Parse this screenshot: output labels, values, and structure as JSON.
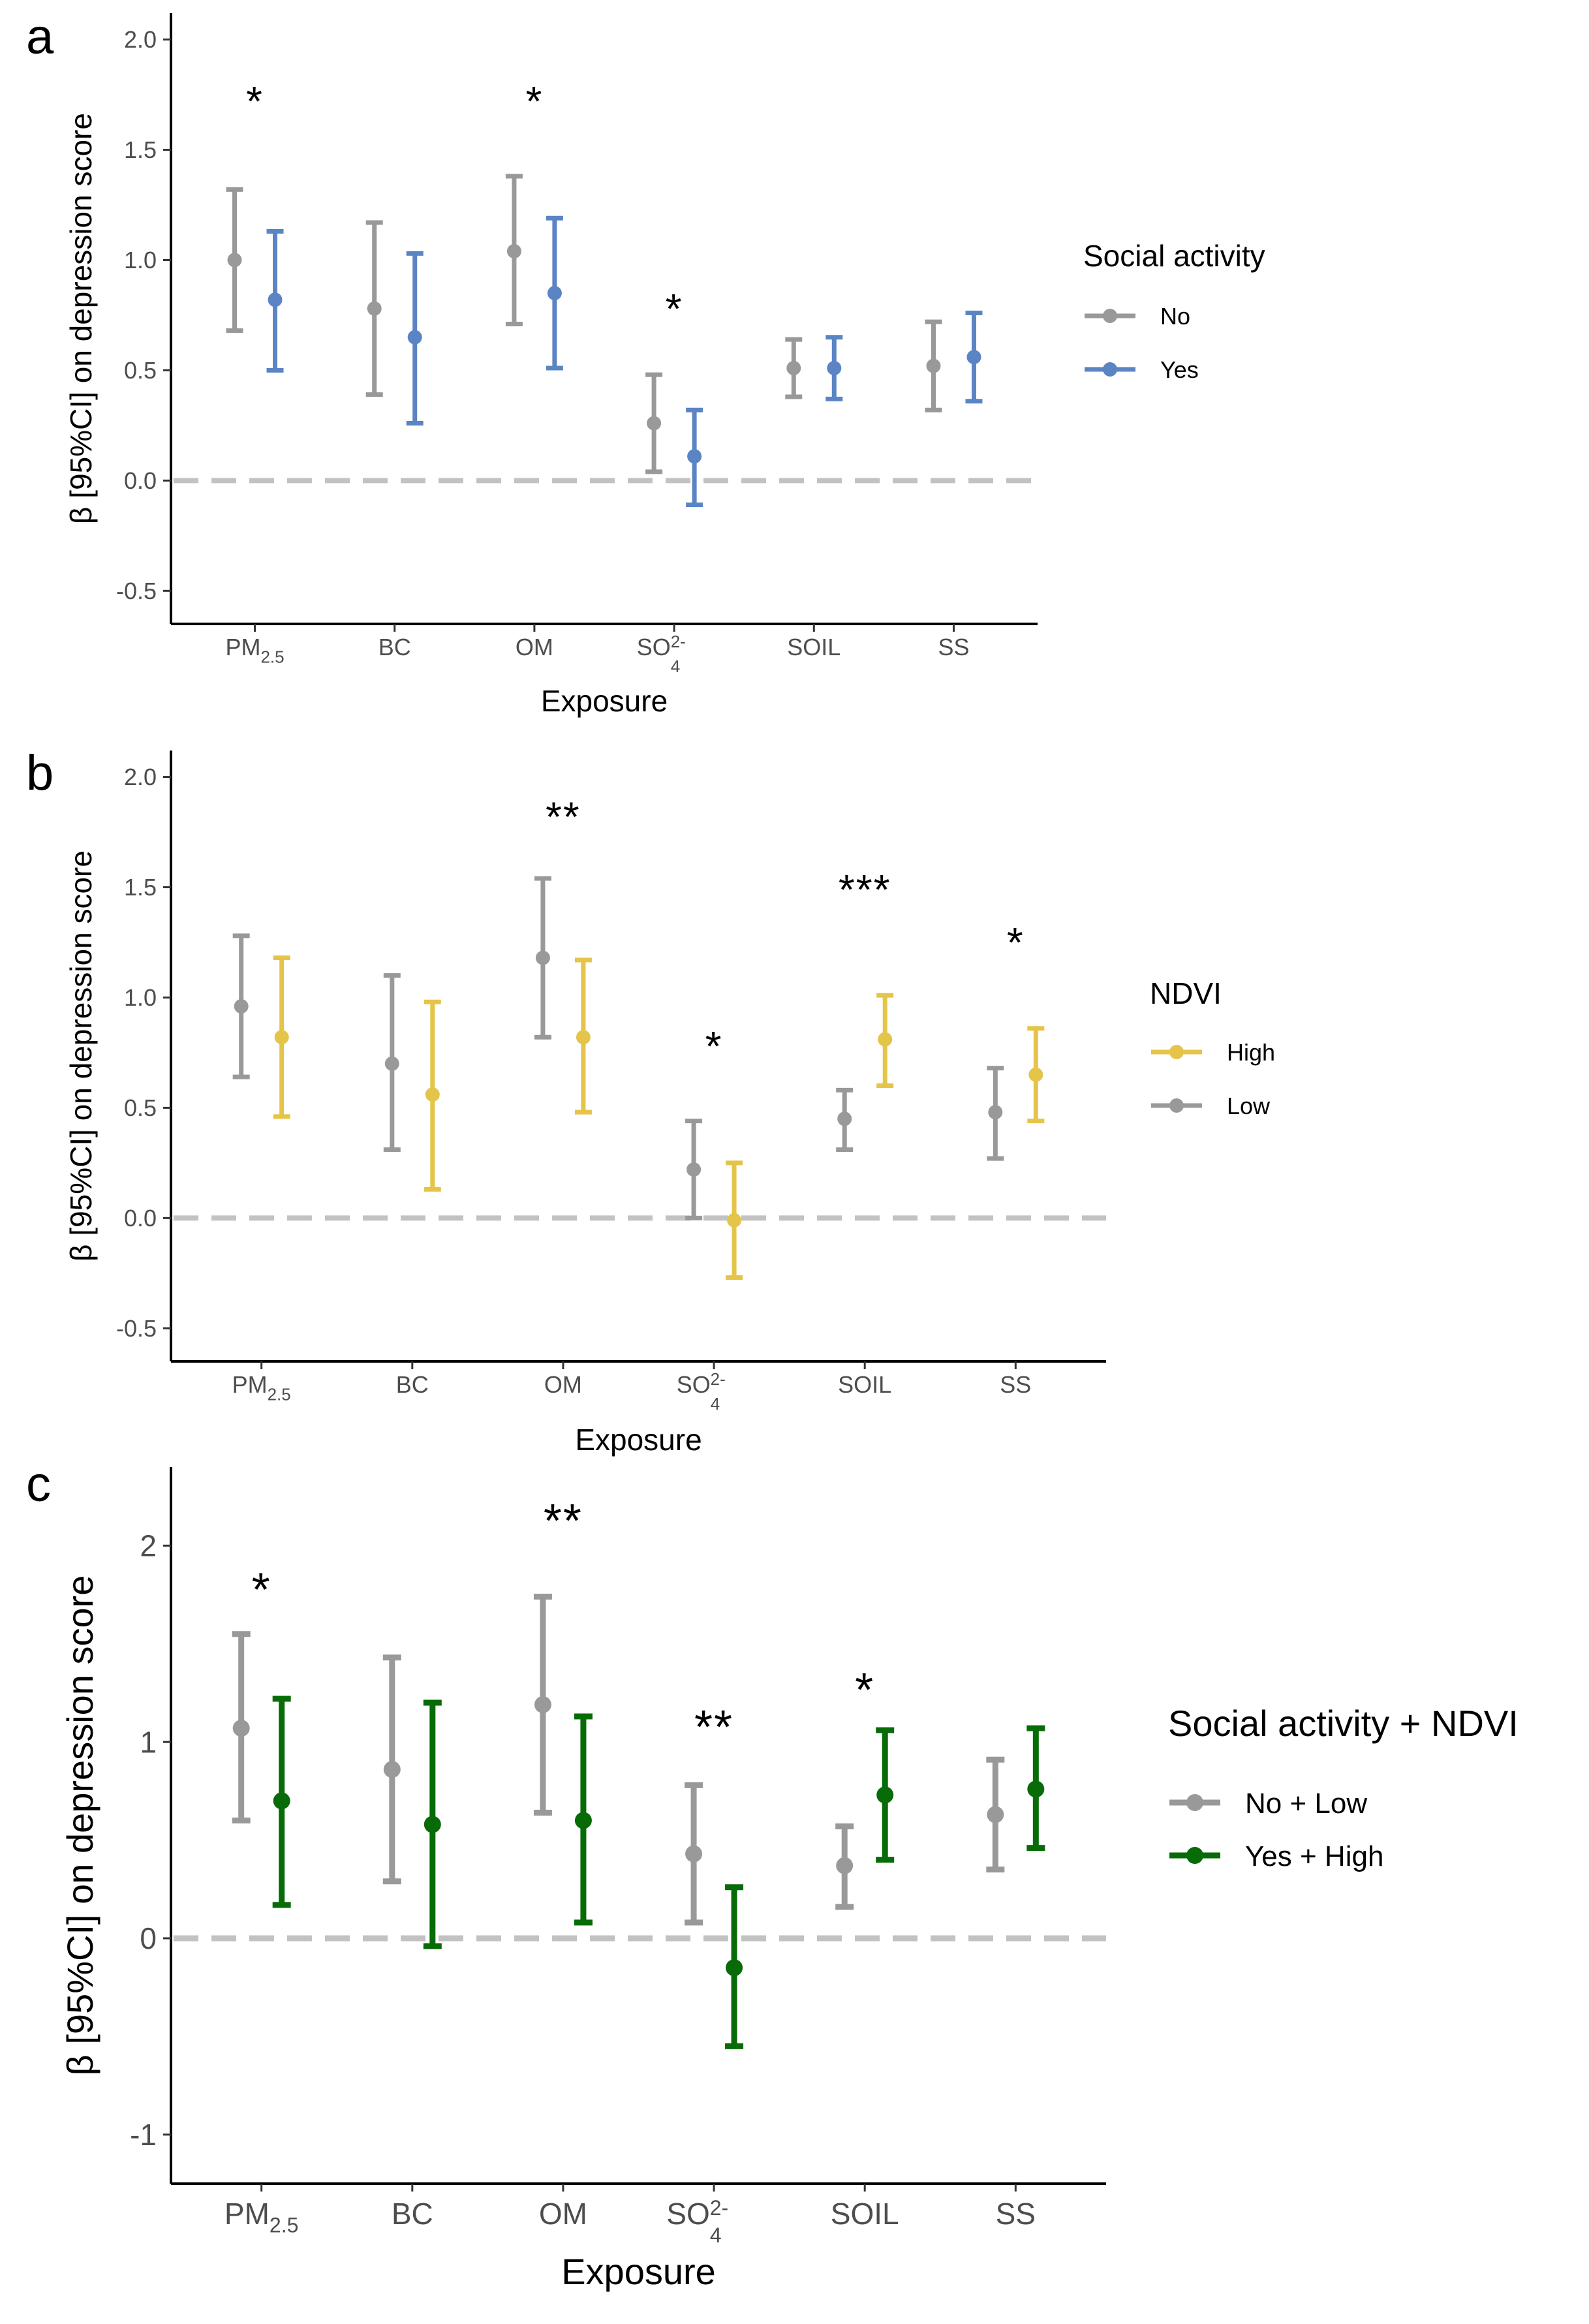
{
  "chart_data": [
    {
      "panel_label": "a",
      "type": "scatter",
      "xlabel": "Exposure",
      "ylabel": "β [95%CI] on depression score",
      "ylim": [
        -0.65,
        2.12
      ],
      "yticks": [
        -0.5,
        0.0,
        0.5,
        1.0,
        1.5,
        2.0
      ],
      "ytick_labels": [
        "-0.5",
        "0.0",
        "0.5",
        "1.0",
        "1.5",
        "2.0"
      ],
      "categories": [
        "PM2.5",
        "BC",
        "OM",
        "SO42-",
        "SOIL",
        "SS"
      ],
      "reference_line": 0,
      "legend": {
        "title": "Social activity",
        "placement": "right"
      },
      "series": [
        {
          "name": "No",
          "color": "#999999",
          "estimate": [
            1.0,
            0.78,
            1.04,
            0.26,
            0.51,
            0.52
          ],
          "lower": [
            0.68,
            0.39,
            0.71,
            0.04,
            0.38,
            0.32
          ],
          "upper": [
            1.32,
            1.17,
            1.38,
            0.48,
            0.64,
            0.72
          ]
        },
        {
          "name": "Yes",
          "color": "#5b84c4",
          "estimate": [
            0.82,
            0.65,
            0.85,
            0.11,
            0.51,
            0.56
          ],
          "lower": [
            0.5,
            0.26,
            0.51,
            -0.11,
            0.37,
            0.36
          ],
          "upper": [
            1.13,
            1.03,
            1.19,
            0.32,
            0.65,
            0.76
          ]
        }
      ],
      "annotations": [
        {
          "category": 0,
          "text": "*",
          "y": 1.72
        },
        {
          "category": 2,
          "text": "*",
          "y": 1.72
        },
        {
          "category": 3,
          "text": "*",
          "y": 0.78
        }
      ]
    },
    {
      "panel_label": "b",
      "type": "scatter",
      "xlabel": "Exposure",
      "ylabel": "β [95%CI] on depression score",
      "ylim": [
        -0.65,
        2.12
      ],
      "yticks": [
        -0.5,
        0.0,
        0.5,
        1.0,
        1.5,
        2.0
      ],
      "ytick_labels": [
        "-0.5",
        "0.0",
        "0.5",
        "1.0",
        "1.5",
        "2.0"
      ],
      "categories": [
        "PM2.5",
        "BC",
        "OM",
        "SO42-",
        "SOIL",
        "SS"
      ],
      "reference_line": 0,
      "legend": {
        "title": "NDVI",
        "placement": "right"
      },
      "series": [
        {
          "name": "Low",
          "color": "#999999",
          "estimate": [
            0.96,
            0.7,
            1.18,
            0.22,
            0.45,
            0.48
          ],
          "lower": [
            0.64,
            0.31,
            0.82,
            0.0,
            0.31,
            0.27
          ],
          "upper": [
            1.28,
            1.1,
            1.54,
            0.44,
            0.58,
            0.68
          ]
        },
        {
          "name": "High",
          "color": "#e5c44a",
          "estimate": [
            0.82,
            0.56,
            0.82,
            -0.01,
            0.81,
            0.65
          ],
          "lower": [
            0.46,
            0.13,
            0.48,
            -0.27,
            0.6,
            0.44
          ],
          "upper": [
            1.18,
            0.98,
            1.17,
            0.25,
            1.01,
            0.86
          ]
        }
      ],
      "legend_order": [
        "High",
        "Low"
      ],
      "annotations": [
        {
          "category": 2,
          "text": "**",
          "y": 1.82
        },
        {
          "category": 3,
          "text": "*",
          "y": 0.78
        },
        {
          "category": 4,
          "text": "***",
          "y": 1.49
        },
        {
          "category": 5,
          "text": "*",
          "y": 1.25
        }
      ]
    },
    {
      "panel_label": "c",
      "type": "scatter",
      "xlabel": "Exposure",
      "ylabel": "β [95%CI] on depression score",
      "ylim": [
        -1.25,
        2.4
      ],
      "yticks": [
        -1,
        0,
        1,
        2
      ],
      "ytick_labels": [
        "-1",
        "0",
        "1",
        "2"
      ],
      "categories": [
        "PM2.5",
        "BC",
        "OM",
        "SO42-",
        "SOIL",
        "SS"
      ],
      "reference_line": 0,
      "legend": {
        "title": "Social activity + NDVI",
        "placement": "right"
      },
      "series": [
        {
          "name": "No + Low",
          "color": "#999999",
          "estimate": [
            1.07,
            0.86,
            1.19,
            0.43,
            0.37,
            0.63
          ],
          "lower": [
            0.6,
            0.29,
            0.64,
            0.08,
            0.16,
            0.35
          ],
          "upper": [
            1.55,
            1.43,
            1.74,
            0.78,
            0.57,
            0.91
          ]
        },
        {
          "name": "Yes + High",
          "color": "#076b07",
          "estimate": [
            0.7,
            0.58,
            0.6,
            -0.15,
            0.73,
            0.76
          ],
          "lower": [
            0.17,
            -0.04,
            0.08,
            -0.55,
            0.4,
            0.46
          ],
          "upper": [
            1.22,
            1.2,
            1.13,
            0.26,
            1.06,
            1.07
          ]
        }
      ],
      "annotations": [
        {
          "category": 0,
          "text": "*",
          "y": 1.78
        },
        {
          "category": 2,
          "text": "**",
          "y": 2.13
        },
        {
          "category": 3,
          "text": "**",
          "y": 1.08
        },
        {
          "category": 4,
          "text": "*",
          "y": 1.27
        }
      ]
    }
  ]
}
